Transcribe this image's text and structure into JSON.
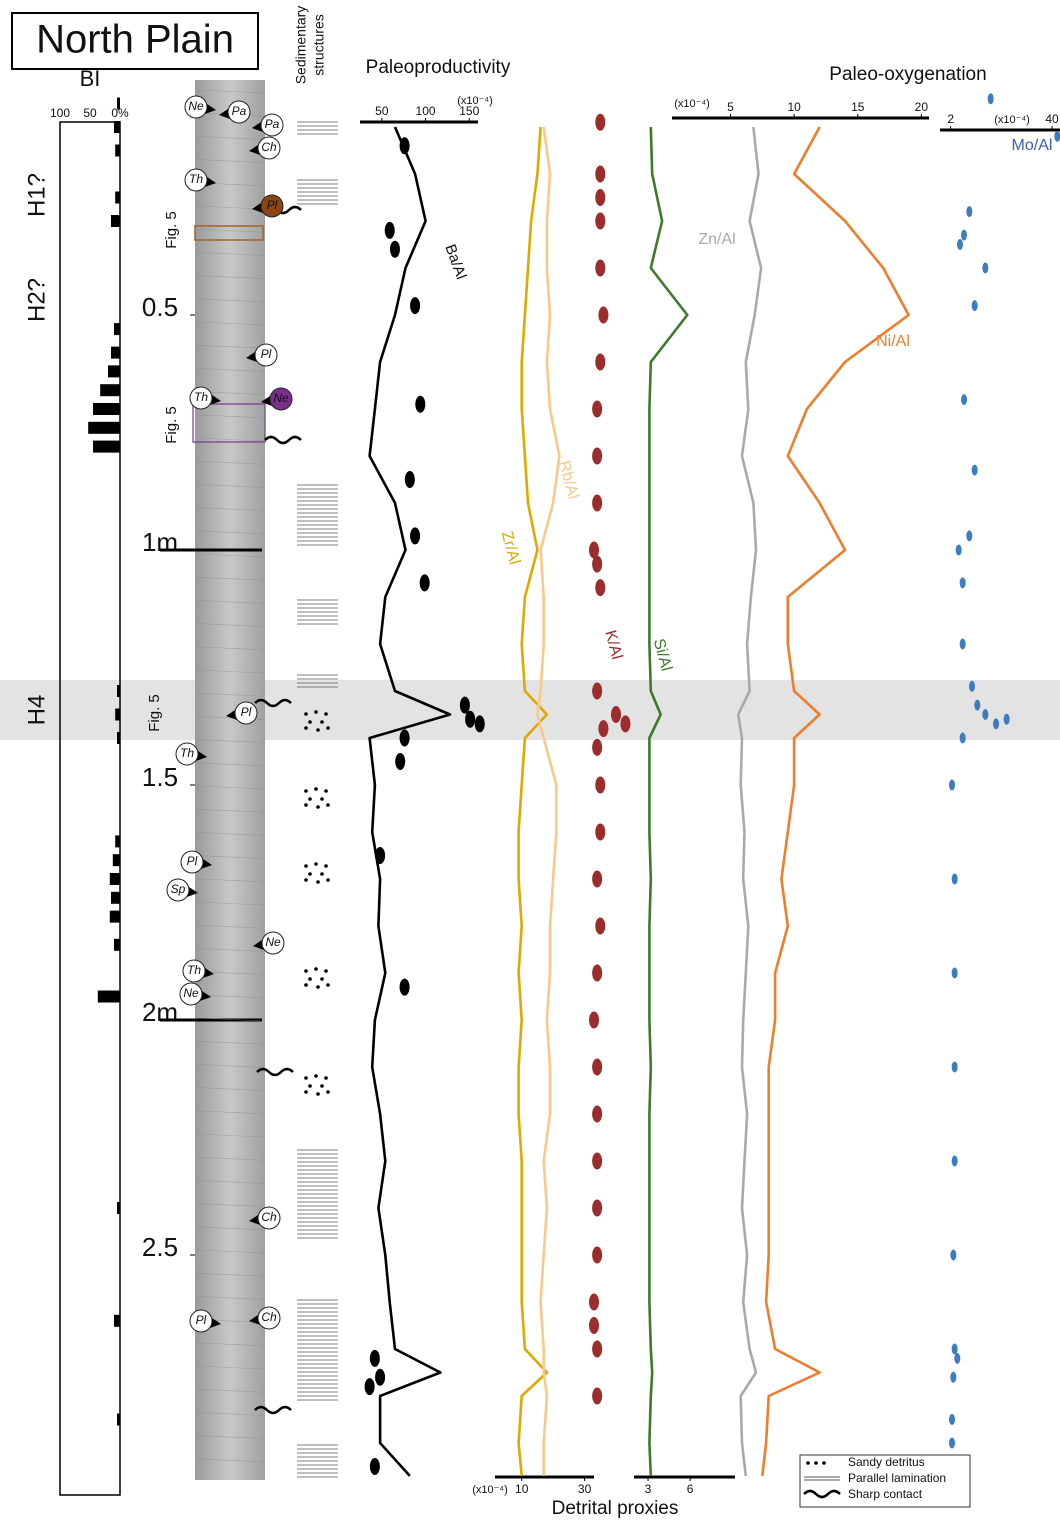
{
  "title": "North Plain",
  "intervals": [
    "H2?",
    "H1?",
    "H4"
  ],
  "core": {
    "labels": [
      "Ne",
      "Pa",
      "Pa",
      "Ch",
      "Th",
      "Pl",
      "Pl",
      "Th",
      "Ne",
      "Pl",
      "Th",
      "Pl",
      "Sp",
      "Ne",
      "Th",
      "Ne",
      "Ch",
      "Pl",
      "Ch"
    ],
    "figure_refs": [
      "Fig. 5",
      "Fig. 5",
      "Fig. 5"
    ]
  },
  "sedimentary_header": [
    "Sedimentary",
    "structures"
  ],
  "sections": [
    "Paleoproductivity",
    "Paleo-oxygenation",
    "Detrital proxies"
  ],
  "legend": [
    "Sandy detritus",
    "Parallel lamination",
    "Sharp contact"
  ],
  "depth": {
    "ylim": [
      0,
      3
    ],
    "yticks": [
      {
        "value": 0.5,
        "label": "0.5"
      },
      {
        "value": 1,
        "label": "1m"
      },
      {
        "value": 1.5,
        "label": "1.5"
      },
      {
        "value": 2,
        "label": "2m"
      },
      {
        "value": 2.5,
        "label": "2.5"
      }
    ],
    "samples": [
      0.1,
      0.2,
      0.3,
      0.4,
      0.5,
      0.6,
      0.7,
      0.8,
      0.9,
      1.0,
      1.1,
      1.2,
      1.3,
      1.35,
      1.4,
      1.5,
      1.6,
      1.7,
      1.8,
      1.9,
      2.0,
      2.1,
      2.2,
      2.3,
      2.4,
      2.5,
      2.6,
      2.7,
      2.75,
      2.8,
      2.9,
      2.97
    ]
  },
  "chart_data": [
    {
      "type": "bar",
      "x_label": "BI",
      "xlim": [
        100,
        0
      ],
      "xticks": [
        100,
        50,
        {
          "value": 0,
          "label": "0%"
        }
      ],
      "color": "#000000",
      "depths": [
        0.05,
        0.1,
        0.15,
        0.25,
        0.3,
        0.53,
        0.58,
        0.62,
        0.66,
        0.7,
        0.74,
        0.78,
        1.3,
        1.35,
        1.4,
        1.62,
        1.66,
        1.7,
        1.74,
        1.78,
        1.84,
        1.95,
        2.4,
        2.64,
        2.85
      ],
      "values": [
        5,
        10,
        8,
        8,
        15,
        10,
        15,
        20,
        33,
        45,
        53,
        45,
        5,
        8,
        5,
        8,
        12,
        17,
        15,
        17,
        10,
        37,
        5,
        10,
        5
      ]
    },
    {
      "type": "line",
      "unit": "(x10⁻⁴)",
      "xlim": [
        25,
        160
      ],
      "xticks": [
        50,
        100,
        150
      ],
      "series": [
        {
          "name": "Ba/Al",
          "color": "#000000",
          "values": [
            65,
            88,
            100,
            77,
            65,
            48,
            42,
            36,
            65,
            77,
            54,
            48,
            65,
            128,
            36,
            42,
            39,
            48,
            46,
            54,
            42,
            39,
            48,
            54,
            46,
            54,
            59,
            65,
            117,
            48,
            48,
            82
          ]
        }
      ],
      "points": {
        "color": "#000000",
        "depths": [
          0.14,
          0.32,
          0.36,
          0.48,
          0.69,
          0.85,
          0.97,
          1.07,
          1.33,
          1.36,
          1.37,
          1.4,
          1.45,
          1.65,
          1.93,
          2.72,
          2.76,
          2.78,
          2.95
        ],
        "values": [
          76,
          59,
          65,
          88,
          94,
          82,
          88,
          99,
          145,
          151,
          162,
          76,
          71,
          48,
          76,
          42,
          48,
          36,
          42
        ]
      }
    },
    {
      "type": "line",
      "unit": "(x10⁻⁴)",
      "xlim": [
        1.5,
        33
      ],
      "xticks": [
        10,
        30
      ],
      "series": [
        {
          "name": "Zr/Al",
          "color": "#e0a800",
          "values": [
            16,
            15,
            13,
            12,
            11,
            10,
            10,
            11,
            12,
            15,
            11,
            10,
            11,
            18,
            11,
            10,
            9,
            9,
            10,
            9,
            10,
            9,
            9,
            10,
            10,
            10,
            10,
            11,
            18,
            10,
            9,
            10
          ]
        },
        {
          "name": "Rb/Al",
          "color": "#f8c98a",
          "values": [
            17,
            19,
            18,
            18,
            19,
            18,
            19,
            22,
            20,
            16,
            17,
            17,
            16,
            15,
            17,
            21,
            21,
            20,
            19,
            19,
            18,
            19,
            19,
            17,
            18,
            17,
            16,
            17,
            17,
            18,
            17,
            17
          ]
        }
      ],
      "points": {
        "name": "K/Al",
        "color": "#9b2d2d",
        "depths": [
          0.09,
          0.2,
          0.25,
          0.3,
          0.4,
          0.5,
          0.6,
          0.7,
          0.8,
          0.9,
          1.0,
          1.03,
          1.08,
          1.3,
          1.35,
          1.37,
          1.38,
          1.42,
          1.5,
          1.6,
          1.7,
          1.8,
          1.9,
          2.0,
          2.1,
          2.2,
          2.3,
          2.4,
          2.5,
          2.6,
          2.65,
          2.7,
          2.8
        ],
        "values": [
          35,
          35,
          35,
          35,
          35,
          36,
          35,
          34,
          34,
          34,
          33,
          34,
          35,
          34,
          40,
          43,
          36,
          34,
          35,
          35,
          34,
          35,
          34,
          33,
          34,
          34,
          34,
          34,
          34,
          33,
          33,
          34,
          34
        ]
      }
    },
    {
      "type": "line",
      "xlim": [
        2,
        9.2
      ],
      "xticks": [
        3,
        6
      ],
      "series": [
        {
          "name": "Si/Al",
          "color": "#3d7a2a",
          "values": [
            3.2,
            3.3,
            4.0,
            3.2,
            5.8,
            3.2,
            3.1,
            3.1,
            3.1,
            3.1,
            3.1,
            3.1,
            3.2,
            3.9,
            3.1,
            3.1,
            3.1,
            3.2,
            3.1,
            3.1,
            3.1,
            3.2,
            3.1,
            3.1,
            3.1,
            3.1,
            3.1,
            3.2,
            3.3,
            3.2,
            3.1,
            3.2
          ]
        }
      ]
    },
    {
      "type": "line",
      "unit": "(x10⁻⁴)",
      "xlim": [
        0.4,
        20.6
      ],
      "xticks": [
        5,
        10,
        15,
        20
      ],
      "series": [
        {
          "name": "Zn/Al",
          "color": "#a9a9a9",
          "values": [
            6.8,
            7.2,
            6.5,
            7.4,
            6.9,
            6.2,
            6.4,
            5.9,
            6.8,
            7.0,
            6.6,
            6.3,
            6.5,
            5.6,
            5.9,
            5.8,
            6.1,
            6.0,
            6.4,
            6.2,
            6.0,
            5.9,
            6.3,
            6.1,
            5.9,
            6.3,
            6.0,
            6.5,
            7.0,
            5.8,
            5.9,
            6.2
          ]
        },
        {
          "name": "Ni/Al",
          "color": "#ef7d2c",
          "values": [
            12,
            10,
            14,
            17,
            19,
            14,
            11,
            9.5,
            12,
            14,
            9.5,
            9.5,
            10,
            12,
            10,
            10,
            9.5,
            9,
            9.5,
            8.5,
            8.5,
            8,
            8,
            8,
            8,
            8,
            7.8,
            8.5,
            12,
            8,
            7.8,
            7.5
          ]
        }
      ]
    },
    {
      "type": "scatter",
      "unit": "(x10⁻⁴)",
      "xlim": [
        -2,
        43
      ],
      "xticks": [
        2,
        40
      ],
      "points": {
        "name": "Mo/Al",
        "color": "#3e7cc2",
        "depths": [
          0.04,
          0.12,
          0.28,
          0.33,
          0.35,
          0.4,
          0.48,
          0.68,
          0.83,
          0.97,
          1.0,
          1.07,
          1.2,
          1.29,
          1.33,
          1.35,
          1.37,
          1.36,
          1.4,
          1.5,
          1.7,
          1.9,
          2.1,
          2.3,
          2.5,
          2.7,
          2.72,
          2.76,
          2.85,
          2.9
        ],
        "values": [
          17,
          42,
          9,
          7,
          5.5,
          15,
          11,
          7,
          11,
          9,
          5,
          6.5,
          6.5,
          10,
          12,
          15,
          19,
          23,
          6.5,
          2.5,
          3.5,
          3.5,
          3.5,
          3.5,
          3,
          3.5,
          4.5,
          3,
          2.5,
          2.5
        ]
      }
    }
  ]
}
